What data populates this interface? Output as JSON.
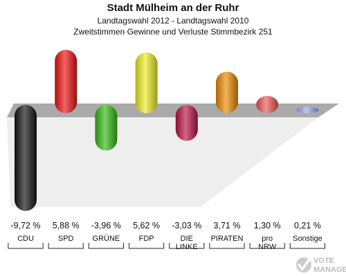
{
  "header": {
    "title": "Stadt Mülheim an der Ruhr",
    "subtitle1": "Landtagswahl 2012 - Landtagswahl 2010",
    "subtitle2": "Zweitstimmen Gewinne und Verluste Stimmbezirk 251"
  },
  "chart_data": {
    "type": "bar",
    "title": "Stadt Mülheim an der Ruhr",
    "subtitle": "Landtagswahl 2012 - Landtagswahl 2010 / Zweitstimmen Gewinne und Verluste Stimmbezirk 251",
    "categories": [
      [
        "CDU"
      ],
      [
        "SPD"
      ],
      [
        "GRÜNE"
      ],
      [
        "FDP"
      ],
      [
        "DIE",
        "LINKE"
      ],
      [
        "PIRATEN"
      ],
      [
        "pro",
        "NRW"
      ],
      [
        "Sonstige"
      ]
    ],
    "values": [
      -9.72,
      5.88,
      -3.96,
      5.62,
      -3.03,
      3.71,
      1.3,
      0.21
    ],
    "value_labels": [
      "-9,72 %",
      "5,88 %",
      "-3,96 %",
      "5,62 %",
      "-3,03 %",
      "3,71 %",
      "1,30 %",
      "0,21 %"
    ],
    "colors": [
      "#111111",
      "#ee1111",
      "#33bb11",
      "#eeee22",
      "#bb1144",
      "#ee8800",
      "#ee5555",
      "#99aaee"
    ],
    "xlabel": "",
    "ylabel": "",
    "ylim": [
      -9.72,
      5.88
    ],
    "grid": false,
    "legend": "none"
  },
  "watermark": {
    "text": "VOTE MANAGER",
    "icon": "vote-manager-logo-icon"
  }
}
